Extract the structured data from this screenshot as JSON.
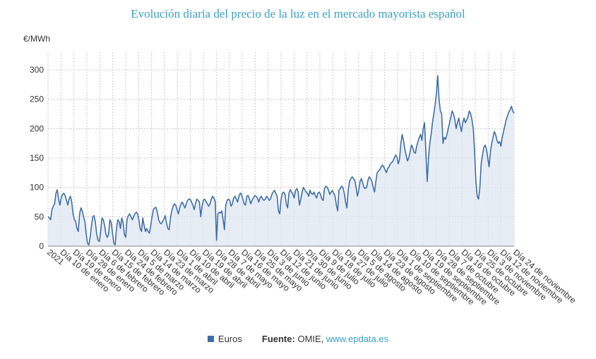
{
  "title": "Evolución diaria del precio de la luz en el mercado mayorista español",
  "unit_label": "€/MWh",
  "legend": {
    "series": "Euros",
    "source_label": "Fuente:",
    "source_text": "OMIE,",
    "source_link": "www.epdata.es"
  },
  "colors": {
    "line": "#3f6ea6",
    "fill": "#dde5f0",
    "grid": "#c8c8c8",
    "title": "#3aa0c8"
  },
  "chart_data": {
    "type": "area",
    "ylabel": "€/MWh",
    "ylim": [
      0,
      330
    ],
    "yticks": [
      0,
      50,
      100,
      150,
      200,
      250,
      300
    ],
    "grid": true,
    "legend_position": "bottom-center",
    "xtick_labels": [
      "2021",
      "Día 10 de enero",
      "Día 19 de enero",
      "Día 28 de enero",
      "Día 6 de febrero",
      "Día 15 de febrero",
      "Día 24 de febrero",
      "Día 5 de marzo",
      "Día 14 de marzo",
      "Día 23 de marzo",
      "Día 1 de abril",
      "Día 10 de abril",
      "Día 19 de abril",
      "Día 28 de abril",
      "Día 7 de mayo",
      "Día 16 de mayo",
      "Día 25 de mayo",
      "Día 3 de junio",
      "Día 12 de junio",
      "Día 21 de junio",
      "Día 30 de junio",
      "Día 9 de julio",
      "Día 18 de julio",
      "Día 27 de julio",
      "Día 5 de agosto",
      "Día 14 de agosto",
      "Día 23 de agosto",
      "Día 1 de septiembre",
      "Día 10 de septiembre",
      "Día 19 de septiembre",
      "Día 28 de septiembre",
      "Día 7 de octubre",
      "Día 16 de octubre",
      "Día 25 de octubre",
      "Día 3 de noviembre",
      "Día 12 de noviembre",
      "Día 24 de noviembre"
    ],
    "series": [
      {
        "name": "Euros",
        "values": [
          50,
          48,
          45,
          62,
          68,
          72,
          90,
          96,
          80,
          70,
          82,
          88,
          90,
          86,
          78,
          70,
          80,
          85,
          75,
          55,
          45,
          42,
          30,
          25,
          55,
          65,
          60,
          50,
          42,
          20,
          5,
          2,
          15,
          35,
          50,
          52,
          40,
          20,
          10,
          8,
          25,
          48,
          45,
          35,
          20,
          15,
          20,
          45,
          40,
          22,
          5,
          2,
          30,
          45,
          42,
          30,
          48,
          40,
          20,
          15,
          45,
          52,
          55,
          50,
          45,
          50,
          55,
          58,
          55,
          45,
          30,
          25,
          48,
          35,
          25,
          30,
          25,
          22,
          35,
          50,
          62,
          65,
          66,
          58,
          45,
          40,
          38,
          42,
          46,
          52,
          40,
          30,
          28,
          48,
          60,
          68,
          72,
          70,
          62,
          55,
          65,
          72,
          75,
          70,
          65,
          72,
          78,
          80,
          80,
          75,
          70,
          62,
          72,
          80,
          78,
          75,
          50,
          68,
          78,
          80,
          76,
          72,
          68,
          72,
          80,
          85,
          82,
          76,
          10,
          55,
          58,
          56,
          60,
          45,
          28,
          70,
          78,
          80,
          78,
          68,
          72,
          82,
          85,
          80,
          75,
          85,
          90,
          88,
          80,
          72,
          70,
          85,
          86,
          80,
          72,
          78,
          82,
          86,
          85,
          82,
          75,
          82,
          85,
          80,
          78,
          80,
          85,
          82,
          78,
          80,
          88,
          92,
          95,
          90,
          85,
          60,
          55,
          80,
          90,
          92,
          88,
          72,
          65,
          90,
          96,
          92,
          88,
          82,
          95,
          98,
          92,
          70,
          80,
          92,
          100,
          96,
          92,
          90,
          85,
          95,
          90,
          88,
          92,
          86,
          82,
          90,
          92,
          88,
          80,
          78,
          98,
          102,
          100,
          96,
          88,
          92,
          95,
          90,
          85,
          70,
          60,
          95,
          98,
          102,
          100,
          90,
          75,
          65,
          95,
          110,
          115,
          118,
          115,
          112,
          100,
          85,
          95,
          110,
          115,
          108,
          100,
          98,
          100,
          112,
          118,
          115,
          110,
          100,
          92,
          110,
          125,
          128,
          130,
          135,
          138,
          135,
          130,
          125,
          132,
          135,
          140,
          142,
          145,
          150,
          155,
          152,
          140,
          148,
          175,
          190,
          180,
          165,
          155,
          145,
          150,
          160,
          172,
          168,
          160,
          158,
          170,
          178,
          185,
          190,
          180,
          200,
          210,
          160,
          110,
          150,
          175,
          190,
          210,
          225,
          240,
          260,
          290,
          250,
          230,
          225,
          175,
          185,
          182,
          190,
          200,
          210,
          220,
          230,
          225,
          215,
          200,
          210,
          218,
          205,
          195,
          210,
          218,
          210,
          215,
          220,
          230,
          225,
          215,
          200,
          160,
          110,
          85,
          80,
          100,
          140,
          155,
          168,
          172,
          165,
          150,
          135,
          160,
          175,
          185,
          195,
          190,
          180,
          175,
          178,
          170,
          185,
          195,
          205,
          215,
          222,
          228,
          232,
          238,
          230,
          226
        ]
      }
    ]
  }
}
